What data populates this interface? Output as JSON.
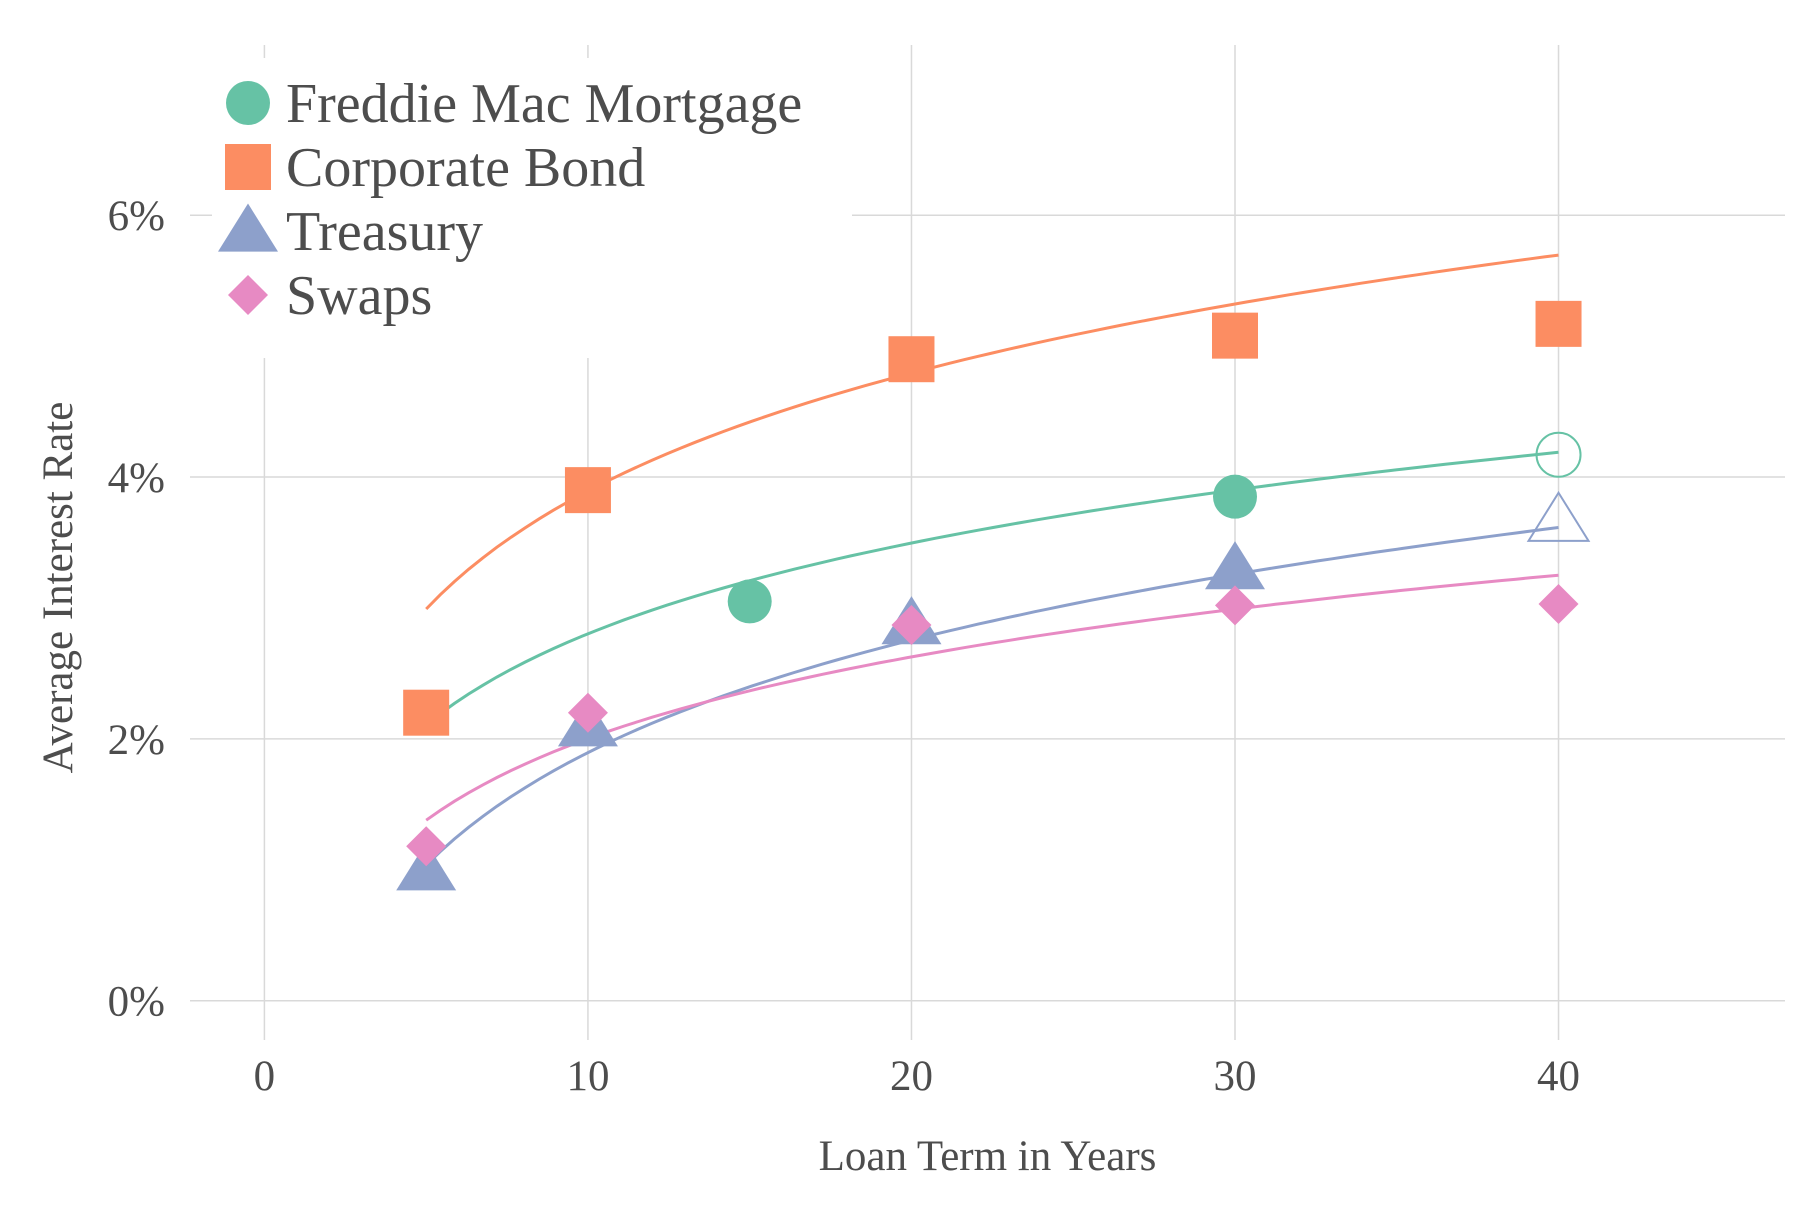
{
  "chart_data": {
    "type": "scatter",
    "title": "",
    "xlabel": "Loan Term in Years",
    "ylabel": "Average Interest Rate",
    "xlim": [
      -2.3,
      47
    ],
    "ylim": [
      -0.3,
      7.3
    ],
    "x_ticks": [
      0,
      10,
      20,
      30,
      40
    ],
    "x_tick_labels": [
      "0",
      "10",
      "20",
      "30",
      "40"
    ],
    "y_ticks": [
      0,
      2,
      4,
      6
    ],
    "y_tick_labels": [
      "0%",
      "2%",
      "4%",
      "6%"
    ],
    "grid": true,
    "legend_position": "top-left",
    "colors": {
      "freddie": "#66c2a5",
      "corporate": "#fc8d62",
      "treasury": "#8da0cb",
      "swaps": "#e78ac3",
      "grid": "#d9d9d9",
      "text": "#4d4d4d"
    },
    "series": [
      {
        "name": "Freddie Mac Mortgage",
        "marker": "circle",
        "color": "#66c2a5",
        "points": [
          {
            "x": 15,
            "y": 3.05,
            "filled": true
          },
          {
            "x": 30,
            "y": 3.85,
            "filled": true
          },
          {
            "x": 40,
            "y": 4.17,
            "filled": false
          }
        ],
        "fit": {
          "a": 0.5,
          "b": 1.0,
          "xmin": 5,
          "xmax": 40
        }
      },
      {
        "name": "Corporate Bond",
        "marker": "square",
        "color": "#fc8d62",
        "points": [
          {
            "x": 5,
            "y": 2.2,
            "filled": true
          },
          {
            "x": 10,
            "y": 3.9,
            "filled": true
          },
          {
            "x": 20,
            "y": 4.9,
            "filled": true
          },
          {
            "x": 30,
            "y": 5.08,
            "filled": true
          },
          {
            "x": 40,
            "y": 5.17,
            "filled": true
          }
        ],
        "fit": {
          "a": 0.9,
          "b": 1.3,
          "xmin": 5,
          "xmax": 40
        }
      },
      {
        "name": "Treasury",
        "marker": "triangle",
        "color": "#8da0cb",
        "points": [
          {
            "x": 5,
            "y": 1.0,
            "filled": true
          },
          {
            "x": 10,
            "y": 2.1,
            "filled": true
          },
          {
            "x": 20,
            "y": 2.88,
            "filled": true
          },
          {
            "x": 30,
            "y": 3.3,
            "filled": true
          },
          {
            "x": 40,
            "y": 3.67,
            "filled": false
          }
        ],
        "fit": {
          "a": -0.96,
          "b": 1.24,
          "xmin": 5,
          "xmax": 40
        }
      },
      {
        "name": "Swaps",
        "marker": "diamond",
        "color": "#e78ac3",
        "points": [
          {
            "x": 5,
            "y": 1.18,
            "filled": true
          },
          {
            "x": 10,
            "y": 2.2,
            "filled": true
          },
          {
            "x": 20,
            "y": 2.87,
            "filled": true
          },
          {
            "x": 30,
            "y": 3.02,
            "filled": true
          },
          {
            "x": 40,
            "y": 3.03,
            "filled": true
          }
        ],
        "fit": {
          "a": -0.07,
          "b": 0.9,
          "xmin": 5,
          "xmax": 40
        }
      }
    ]
  }
}
